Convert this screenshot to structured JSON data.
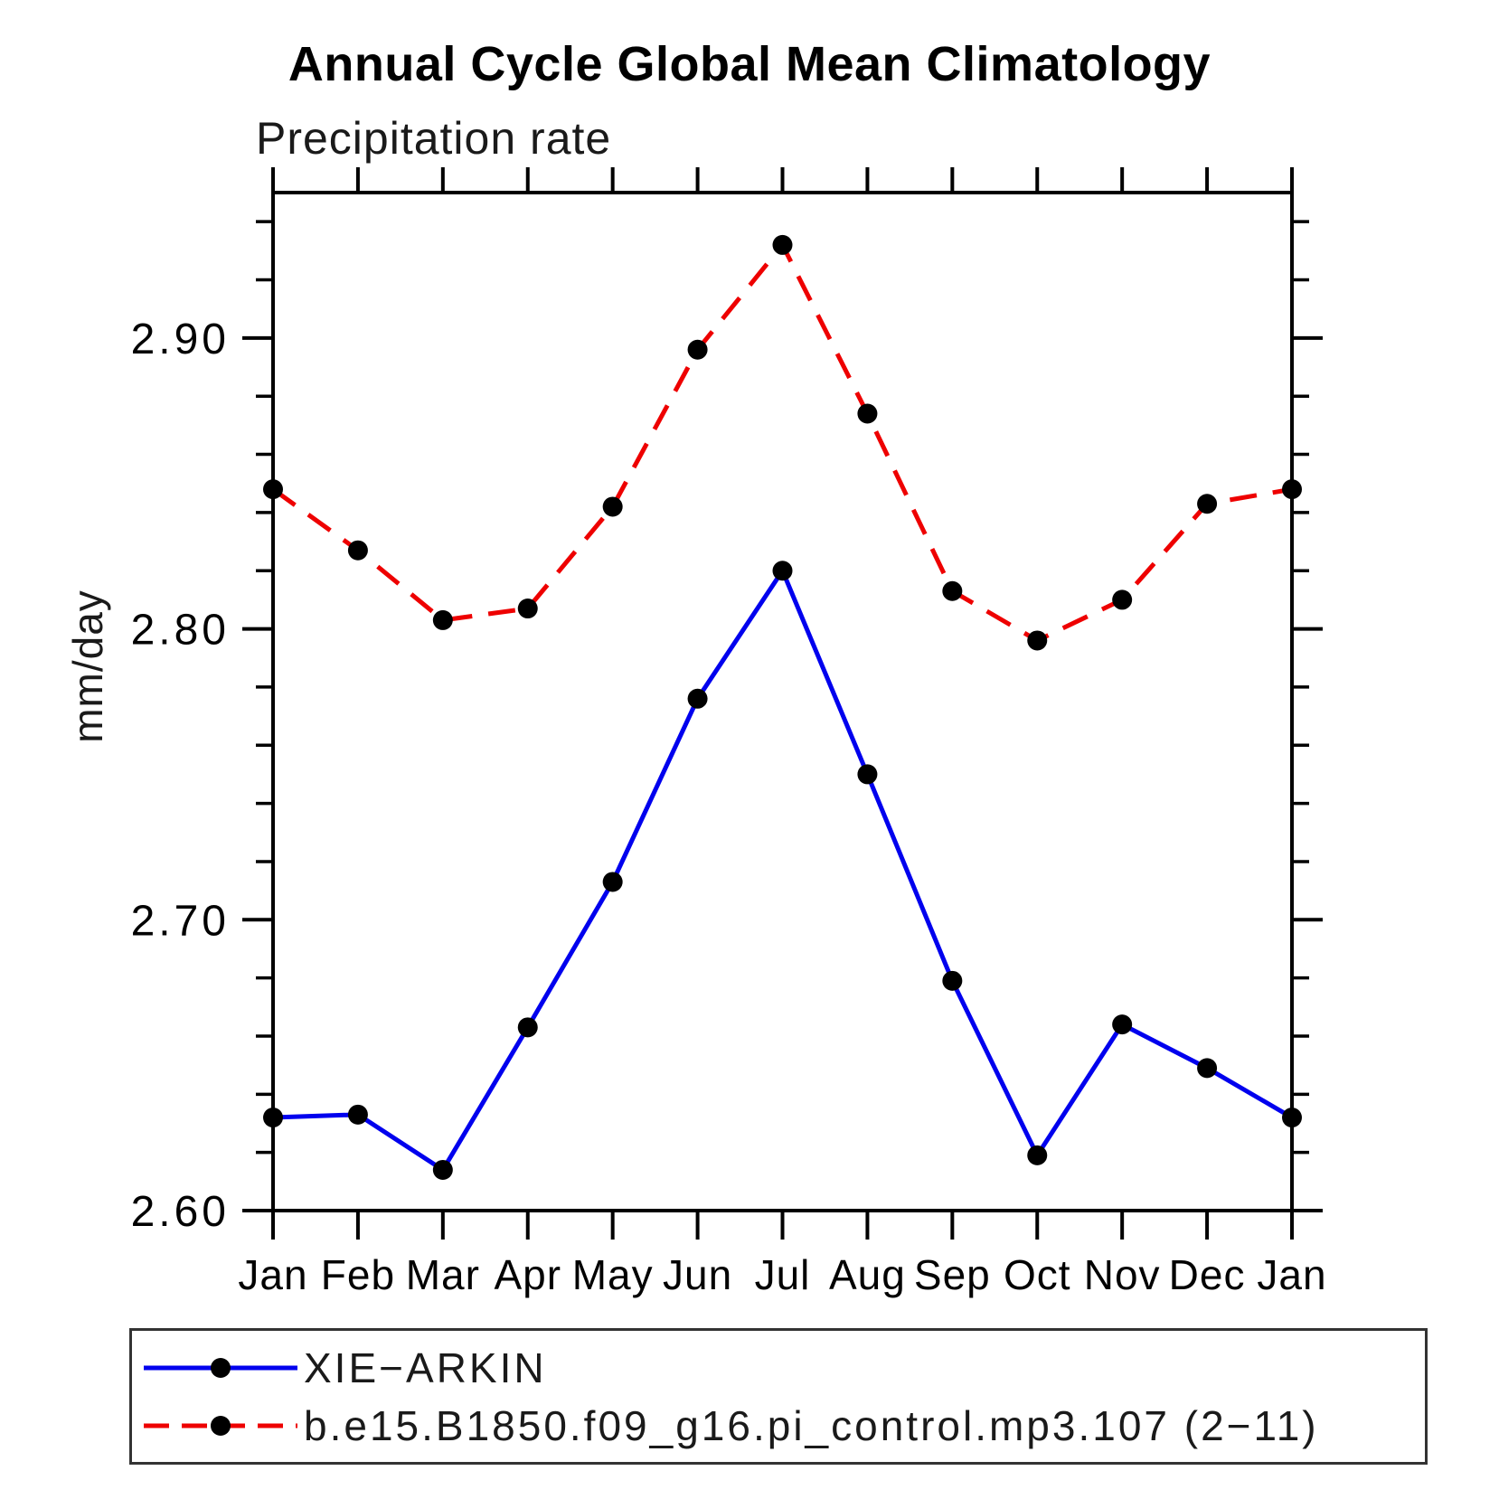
{
  "chart_data": {
    "type": "line",
    "title": "Annual Cycle Global Mean Climatology",
    "subtitle": "Precipitation rate",
    "ylabel": "mm/day",
    "xlabel": "",
    "categories": [
      "Jan",
      "Feb",
      "Mar",
      "Apr",
      "May",
      "Jun",
      "Jul",
      "Aug",
      "Sep",
      "Oct",
      "Nov",
      "Dec",
      "Jan"
    ],
    "series": [
      {
        "name": "XIE−ARKIN",
        "color": "#0000ee",
        "style": "solid",
        "values": [
          2.632,
          2.633,
          2.614,
          2.663,
          2.713,
          2.776,
          2.82,
          2.75,
          2.679,
          2.619,
          2.664,
          2.649,
          2.632
        ]
      },
      {
        "name": "b.e15.B1850.f09_g16.pi_control.mp3.107 (2−11)",
        "color": "#ee0000",
        "style": "dashed",
        "values": [
          2.848,
          2.827,
          2.803,
          2.807,
          2.842,
          2.896,
          2.932,
          2.874,
          2.813,
          2.796,
          2.81,
          2.843,
          2.848
        ]
      }
    ],
    "ylim": [
      2.6,
      2.95
    ],
    "yticks_major": [
      2.6,
      2.7,
      2.8,
      2.9
    ],
    "ytick_labels": [
      "2.60",
      "2.70",
      "2.80",
      "2.90"
    ],
    "minor_step": 0.02,
    "marker_color": "#000000",
    "grid": false,
    "legend_position": "bottom"
  }
}
